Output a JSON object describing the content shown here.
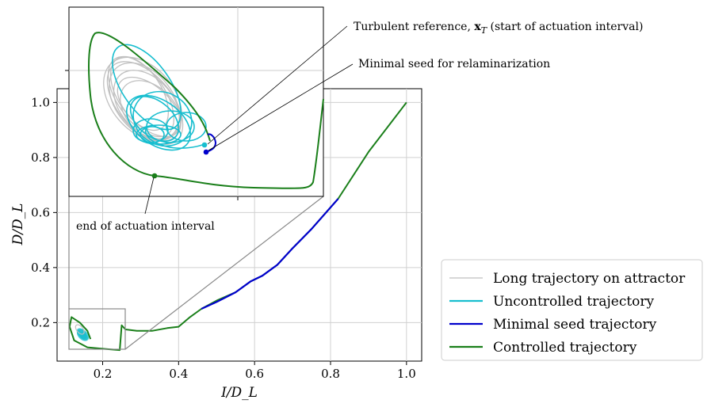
{
  "chart_data": {
    "type": "line",
    "title": "",
    "xlabel": "I/D_L",
    "ylabel": "D/D_L",
    "xlim": [
      0.08,
      1.04
    ],
    "ylim": [
      0.06,
      1.05
    ],
    "xticks": [
      "0.2",
      "0.4",
      "0.6",
      "0.8",
      "1.0"
    ],
    "yticks": [
      "0.2",
      "0.4",
      "0.6",
      "0.8",
      "1.0"
    ],
    "grid": true,
    "legend": {
      "position": "right",
      "entries": [
        {
          "label": "Long trajectory on attractor",
          "color": "#bfbfbf"
        },
        {
          "label": "Uncontrolled trajectory",
          "color": "#17becf"
        },
        {
          "label": "Minimal seed trajectory",
          "color": "#0000cc"
        },
        {
          "label": "Controlled trajectory",
          "color": "#1a7f1a"
        }
      ]
    },
    "series": [
      {
        "name": "Controlled trajectory",
        "color": "#1a7f1a",
        "x": [
          1.0,
          0.9,
          0.82,
          0.75,
          0.7,
          0.66,
          0.62,
          0.59,
          0.55,
          0.5,
          0.46,
          0.43,
          0.4,
          0.37,
          0.33,
          0.29,
          0.26,
          0.25,
          0.245,
          0.2,
          0.16,
          0.125,
          0.113,
          0.118,
          0.14,
          0.16,
          0.168
        ],
        "y": [
          1.0,
          0.82,
          0.65,
          0.54,
          0.47,
          0.41,
          0.37,
          0.35,
          0.31,
          0.28,
          0.25,
          0.22,
          0.185,
          0.18,
          0.17,
          0.17,
          0.175,
          0.19,
          0.1,
          0.105,
          0.11,
          0.135,
          0.185,
          0.22,
          0.2,
          0.17,
          0.14
        ]
      },
      {
        "name": "Minimal seed trajectory",
        "color": "#0000cc",
        "x": [
          0.82,
          0.75,
          0.7,
          0.66,
          0.62,
          0.59,
          0.55,
          0.5,
          0.46
        ],
        "y": [
          0.65,
          0.54,
          0.47,
          0.41,
          0.37,
          0.35,
          0.31,
          0.275,
          0.25
        ]
      }
    ],
    "inset": {
      "zoom_box": {
        "x": [
          0.1,
          0.25
        ],
        "y": [
          0.1,
          0.25
        ]
      },
      "points": [
        {
          "name": "Turbulent reference",
          "color": "#17becf"
        },
        {
          "name": "Minimal seed",
          "color": "#0000cc"
        },
        {
          "name": "End of actuation interval",
          "color": "#1a7f1a"
        }
      ]
    },
    "annotations": [
      {
        "text_main": "Turbulent reference, ",
        "text_math": "x",
        "text_sub": "T",
        "text_tail": " (start of actuation interval)"
      },
      {
        "text": "Minimal seed for relaminarization"
      },
      {
        "text": "end of actuation interval"
      }
    ]
  }
}
